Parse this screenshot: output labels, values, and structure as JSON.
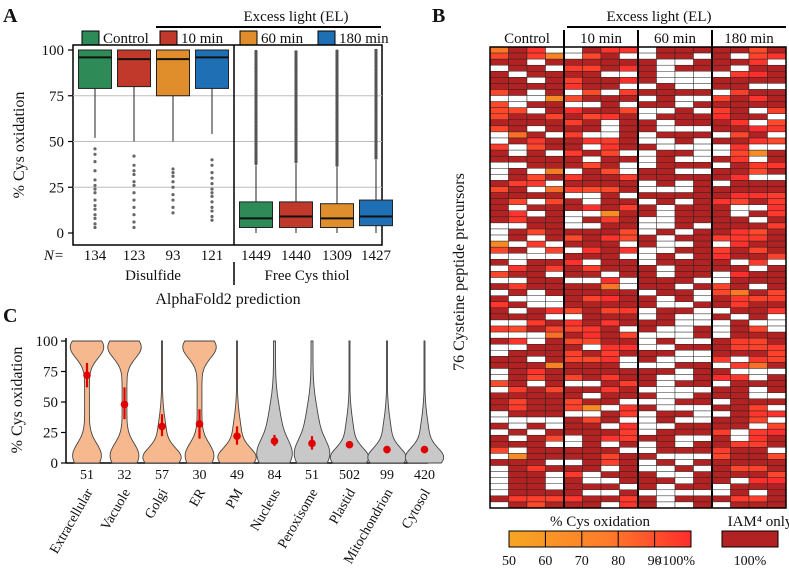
{
  "colors": {
    "control": "#2e8b57",
    "el10": "#c0392b",
    "el60": "#e08e2b",
    "el180": "#1f6fb5",
    "violin_orange": "#f6b98f",
    "violin_gray": "#c8c8c8",
    "marker": "#e00000",
    "heat_full": "#b22222",
    "heat_lo": "#f5a623",
    "heat_hi": "#ff3b30"
  },
  "chart_data": [
    {
      "type": "box",
      "panel": "A",
      "title": "A",
      "legend_header": "Excess light (EL)",
      "legend": [
        "Control",
        "10 min",
        "60 min",
        "180 min"
      ],
      "ylabel": "% Cys oxidation",
      "xlabel": "AlphaFold2 prediction",
      "ylim": [
        0,
        100
      ],
      "yticks": [
        0,
        25,
        50,
        75,
        100
      ],
      "n_label": "N=",
      "groups": [
        {
          "name": "Disulfide",
          "boxes": [
            {
              "series": "Control",
              "n": "134",
              "q1": 79,
              "median": 96,
              "q3": 100,
              "whisker_low": 52,
              "whisker_high": 100,
              "outliers": [
                46,
                43,
                39,
                34,
                29,
                26,
                24,
                22,
                18,
                15,
                13,
                10,
                8,
                5,
                3
              ]
            },
            {
              "series": "10 min",
              "n": "123",
              "q1": 80,
              "median": 95,
              "q3": 100,
              "whisker_low": 50,
              "whisker_high": 100,
              "outliers": [
                42,
                37,
                34,
                32,
                28,
                26,
                22,
                18,
                14,
                10,
                6,
                3
              ]
            },
            {
              "series": "60 min",
              "n": "93",
              "q1": 75,
              "median": 95,
              "q3": 100,
              "whisker_low": 50,
              "whisker_high": 100,
              "outliers": [
                35,
                33,
                31,
                28,
                25,
                21,
                18,
                14,
                11
              ]
            },
            {
              "series": "180 min",
              "n": "121",
              "q1": 79,
              "median": 96,
              "q3": 100,
              "whisker_low": 54,
              "whisker_high": 100,
              "outliers": [
                40,
                37,
                33,
                30,
                27,
                24,
                22,
                20,
                17,
                14,
                12,
                9,
                7
              ]
            }
          ]
        },
        {
          "name": "Free Cys thiol",
          "boxes": [
            {
              "series": "Control",
              "n": "1449",
              "q1": 3,
              "median": 8,
              "q3": 17,
              "whisker_low": 0,
              "whisker_high": 37
            },
            {
              "series": "10 min",
              "n": "1440",
              "q1": 3,
              "median": 9,
              "q3": 17,
              "whisker_low": 0,
              "whisker_high": 38
            },
            {
              "series": "60 min",
              "n": "1309",
              "q1": 3,
              "median": 8,
              "q3": 16,
              "whisker_low": 0,
              "whisker_high": 36
            },
            {
              "series": "180 min",
              "n": "1427",
              "q1": 4,
              "median": 9,
              "q3": 18,
              "whisker_low": 0,
              "whisker_high": 40
            }
          ]
        }
      ]
    },
    {
      "type": "heatmap",
      "panel": "B",
      "title": "B",
      "header": "Excess light (EL)",
      "column_groups": [
        "Control",
        "10 min",
        "60 min",
        "180 min"
      ],
      "columns_per_group": 4,
      "rows": 76,
      "ylabel": "76 Cysteine peptide precursors",
      "colorbar_title": "% Cys oxidation",
      "colorbar_ticks": [
        "50",
        "60",
        "70",
        "80",
        "90",
        "<100%"
      ],
      "colorbar_range": [
        50,
        100
      ],
      "iam_label": "IAM⁴ only",
      "iam_value_label": "100%",
      "seed": 7
    },
    {
      "type": "violin",
      "panel": "C",
      "title": "C",
      "ylabel": "% Cys oxidation",
      "ylim": [
        0,
        100
      ],
      "yticks": [
        0,
        25,
        50,
        75,
        100
      ],
      "categories": [
        "Extracellular",
        "Vacuole",
        "Golgi",
        "ER",
        "PM",
        "Nucleus",
        "Peroxisome",
        "Plastid",
        "Mitochondrion",
        "Cytosol"
      ],
      "n": [
        "51",
        "32",
        "57",
        "30",
        "49",
        "84",
        "51",
        "502",
        "99",
        "420"
      ],
      "means": [
        72,
        48,
        30,
        32,
        22,
        18,
        16,
        15,
        11,
        11
      ],
      "ci": [
        [
          62,
          82
        ],
        [
          36,
          62
        ],
        [
          22,
          40
        ],
        [
          20,
          44
        ],
        [
          15,
          30
        ],
        [
          14,
          23
        ],
        [
          11,
          22
        ],
        [
          13,
          17
        ],
        [
          8,
          14
        ],
        [
          9,
          13
        ]
      ],
      "fill": [
        "orange",
        "orange",
        "orange",
        "orange",
        "orange",
        "gray",
        "gray",
        "gray",
        "gray",
        "gray"
      ],
      "shape": [
        "bimodal",
        "bimodal",
        "low",
        "bimodal",
        "low",
        "flat",
        "flat",
        "low",
        "low",
        "low"
      ]
    }
  ]
}
